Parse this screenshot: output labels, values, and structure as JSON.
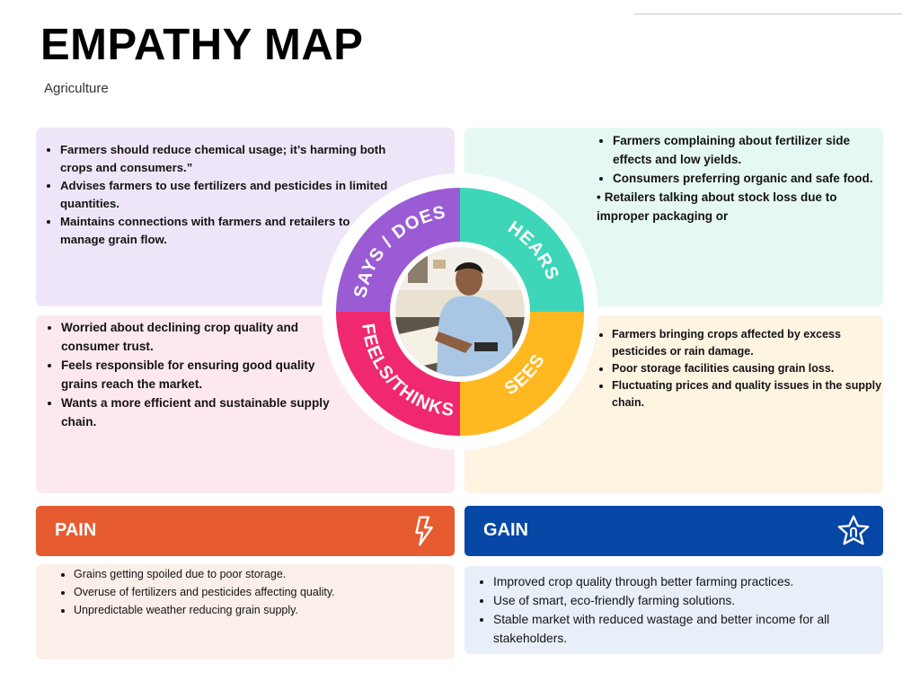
{
  "title": "EMPATHY MAP",
  "subtitle": "Agriculture",
  "wheel": {
    "says_label": "SAYS / DOES",
    "hears_label": "HEARS",
    "feels_label": "FEELS/THINKS",
    "sees_label": "SEES"
  },
  "says": [
    "Farmers should reduce chemical usage; it’s harming both crops and consumers.”",
    " Advises farmers to use fertilizers and pesticides in limited quantities.",
    "Maintains connections with farmers and retailers to manage grain flow."
  ],
  "hears": [
    "Farmers complaining about fertilizer side effects and low yields.",
    " Consumers preferring organic and safe food.",
    "Retailers talking about stock loss due to improper packaging or"
  ],
  "feels": [
    "Worried about declining crop quality and consumer trust.",
    " Feels responsible for ensuring good quality grains reach the market.",
    " Wants a more efficient and sustainable supply chain."
  ],
  "sees": [
    "Farmers bringing crops affected by excess pesticides or rain damage.",
    " Poor storage facilities causing grain loss.",
    " Fluctuating prices and quality issues in the supply chain."
  ],
  "pain": {
    "label": "PAIN",
    "icon": "lightning-bolt-icon",
    "items": [
      "Grains getting spoiled due to poor storage.",
      " Overuse of fertilizers and pesticides affecting quality.",
      " Unpredictable weather reducing grain supply."
    ]
  },
  "gain": {
    "label": "GAIN",
    "icon": "star-icon",
    "items": [
      "Improved crop quality through better farming practices.",
      "Use of smart, eco-friendly farming solutions.",
      " Stable market with reduced wastage and better income for all stakeholders."
    ]
  },
  "colors": {
    "says": "#9b5bd5",
    "hears": "#3ed6b8",
    "feels": "#f0286f",
    "sees": "#ffb81f",
    "pain": "#e65c30",
    "gain": "#0747a6"
  }
}
